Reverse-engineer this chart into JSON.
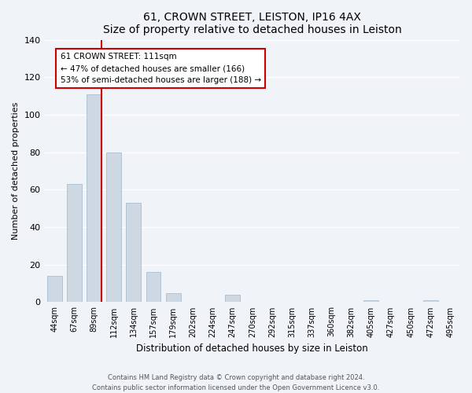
{
  "title": "61, CROWN STREET, LEISTON, IP16 4AX",
  "subtitle": "Size of property relative to detached houses in Leiston",
  "xlabel": "Distribution of detached houses by size in Leiston",
  "ylabel": "Number of detached properties",
  "bar_color": "#cdd8e3",
  "bar_edge_color": "#b0c4d4",
  "categories": [
    "44sqm",
    "67sqm",
    "89sqm",
    "112sqm",
    "134sqm",
    "157sqm",
    "179sqm",
    "202sqm",
    "224sqm",
    "247sqm",
    "270sqm",
    "292sqm",
    "315sqm",
    "337sqm",
    "360sqm",
    "382sqm",
    "405sqm",
    "427sqm",
    "450sqm",
    "472sqm",
    "495sqm"
  ],
  "values": [
    14,
    63,
    111,
    80,
    53,
    16,
    5,
    0,
    0,
    4,
    0,
    0,
    0,
    0,
    0,
    0,
    1,
    0,
    0,
    1,
    0
  ],
  "ylim": [
    0,
    140
  ],
  "yticks": [
    0,
    20,
    40,
    60,
    80,
    100,
    120,
    140
  ],
  "property_line_index": 2,
  "annotation_title": "61 CROWN STREET: 111sqm",
  "annotation_line1": "← 47% of detached houses are smaller (166)",
  "annotation_line2": "53% of semi-detached houses are larger (188) →",
  "annotation_box_color": "#ffffff",
  "annotation_box_edge_color": "#cc0000",
  "property_line_color": "#cc0000",
  "footer_line1": "Contains HM Land Registry data © Crown copyright and database right 2024.",
  "footer_line2": "Contains public sector information licensed under the Open Government Licence v3.0.",
  "background_color": "#f0f4f8",
  "grid_color": "#ffffff",
  "bar_width": 0.75
}
